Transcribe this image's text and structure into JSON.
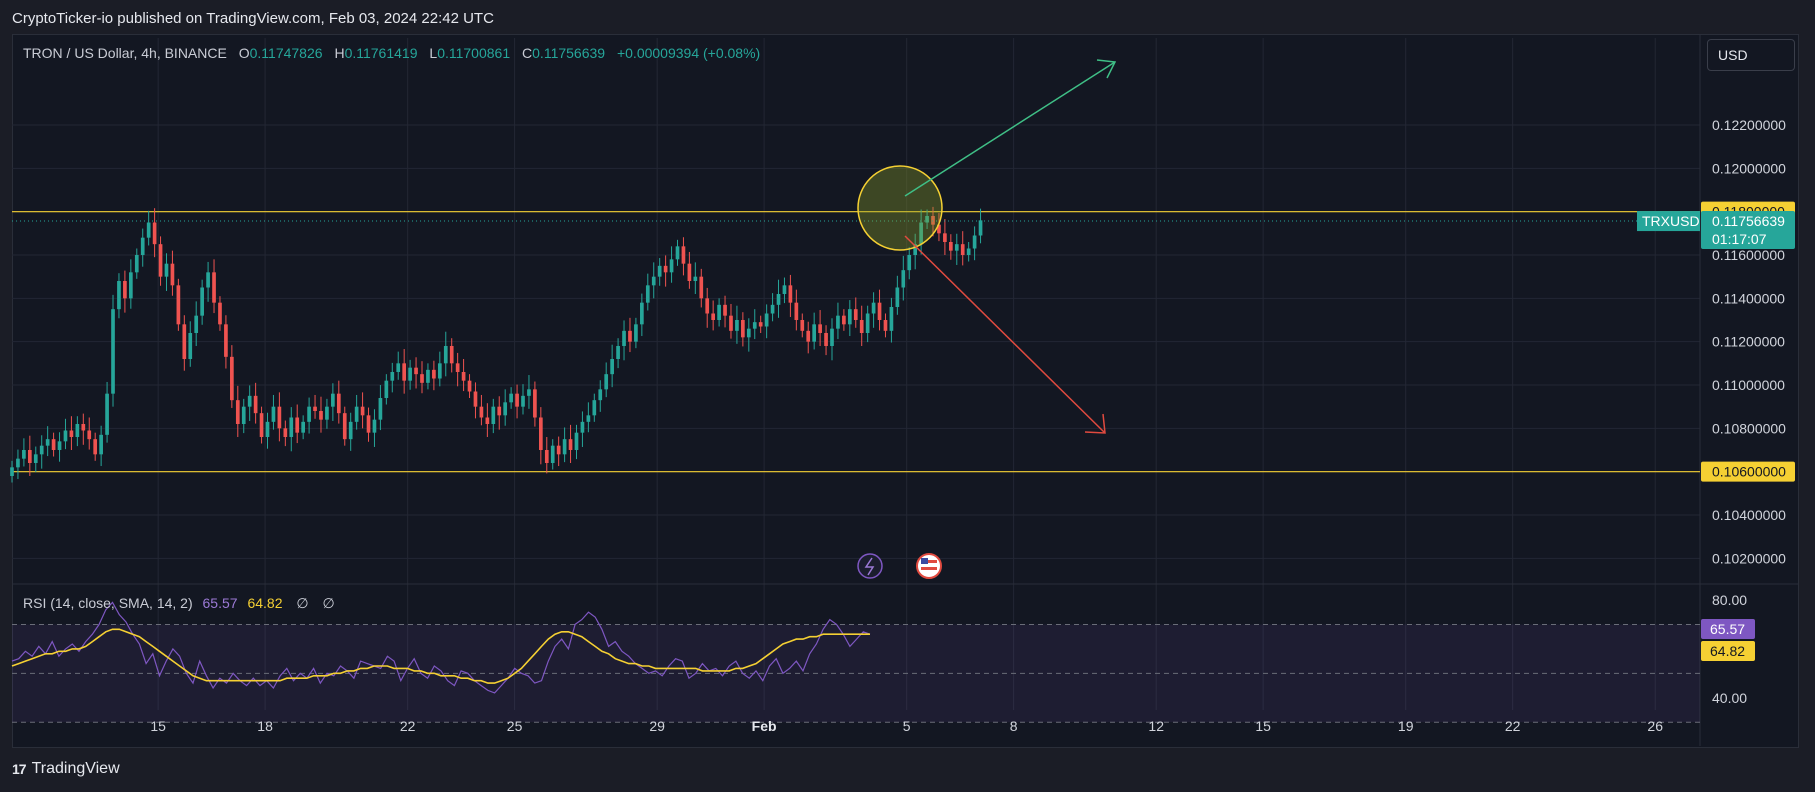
{
  "header": {
    "published_text": "CryptoTicker-io published on TradingView.com, Feb 03, 2024 22:42 UTC"
  },
  "legend": {
    "symbol": "TRON / US Dollar, 4h, BINANCE",
    "open_label": "O",
    "open": "0.11747826",
    "high_label": "H",
    "high": "0.11761419",
    "low_label": "L",
    "low": "0.11700861",
    "close_label": "C",
    "close": "0.11756639",
    "change": "+0.00009394 (+0.08%)"
  },
  "currency_button": "USD",
  "rsi_legend": {
    "label": "RSI (14, close, SMA, 14, 2)",
    "rsi": "65.57",
    "sma": "64.82",
    "na1": "∅",
    "na2": "∅"
  },
  "footer": {
    "brand": "TradingView",
    "logo": "17"
  },
  "colors": {
    "up": "#26a69a",
    "down": "#ef5350",
    "level": "#f5d033",
    "rsi": "#7e57c2",
    "rsi_sma": "#f5d033",
    "arrow_up": "#3fbf86",
    "arrow_down": "#e04a3f"
  },
  "chart_data": [
    {
      "type": "candlestick",
      "title": "TRON / US Dollar, 4h, BINANCE",
      "ylim": [
        0.101,
        0.125
      ],
      "y_ticks": [
        "0.12200000",
        "0.12000000",
        "0.11800000",
        "0.11600000",
        "0.11400000",
        "0.11200000",
        "0.11000000",
        "0.10800000",
        "0.10600000",
        "0.10400000",
        "0.10200000"
      ],
      "x_ticks": [
        {
          "label": "15",
          "x": 14
        },
        {
          "label": "18",
          "x": 17
        },
        {
          "label": "22",
          "x": 21
        },
        {
          "label": "25",
          "x": 24
        },
        {
          "label": "29",
          "x": 28
        },
        {
          "label": "Feb",
          "x": 31
        },
        {
          "label": "5",
          "x": 35
        },
        {
          "label": "8",
          "x": 38
        },
        {
          "label": "12",
          "x": 42
        },
        {
          "label": "15",
          "x": 45
        },
        {
          "label": "19",
          "x": 49
        },
        {
          "label": "22",
          "x": 52
        },
        {
          "label": "26",
          "x": 56
        }
      ],
      "x_unit": "days from Jan 1, 2024",
      "xlim": [
        9.9,
        57.2
      ],
      "horizontal_levels": [
        {
          "value": 0.118,
          "label": "0.11800000"
        },
        {
          "value": 0.106,
          "label": "0.10600000"
        }
      ],
      "last_price": {
        "symbol": "TRXUSD",
        "value": 0.11756639,
        "label": "0.11756639",
        "countdown": "01:17:07"
      },
      "data_start_x": 9.9,
      "candle_step_days": 0.1667,
      "close_series": [
        0.1062,
        0.1066,
        0.107,
        0.1064,
        0.1068,
        0.1072,
        0.1075,
        0.107,
        0.1074,
        0.1079,
        0.1076,
        0.1082,
        0.1079,
        0.1075,
        0.1068,
        0.1077,
        0.1096,
        0.1135,
        0.1148,
        0.114,
        0.1152,
        0.116,
        0.1168,
        0.1175,
        0.1165,
        0.115,
        0.1156,
        0.1146,
        0.1128,
        0.1112,
        0.1124,
        0.1132,
        0.1145,
        0.1152,
        0.1138,
        0.1128,
        0.1113,
        0.1093,
        0.1082,
        0.109,
        0.1095,
        0.1087,
        0.1076,
        0.1083,
        0.109,
        0.108,
        0.1076,
        0.1085,
        0.1078,
        0.1083,
        0.109,
        0.1088,
        0.1084,
        0.109,
        0.1096,
        0.1087,
        0.1075,
        0.1083,
        0.109,
        0.1086,
        0.1078,
        0.1084,
        0.1094,
        0.1102,
        0.1106,
        0.111,
        0.1102,
        0.1108,
        0.1105,
        0.1101,
        0.1107,
        0.1103,
        0.111,
        0.1118,
        0.111,
        0.1106,
        0.1102,
        0.1097,
        0.109,
        0.1085,
        0.1082,
        0.109,
        0.1086,
        0.1092,
        0.1096,
        0.109,
        0.1095,
        0.1098,
        0.1085,
        0.107,
        0.1064,
        0.1072,
        0.1068,
        0.1075,
        0.107,
        0.1078,
        0.1083,
        0.1086,
        0.1093,
        0.1098,
        0.1105,
        0.1112,
        0.1118,
        0.1125,
        0.112,
        0.1128,
        0.1138,
        0.1146,
        0.115,
        0.1155,
        0.1152,
        0.1158,
        0.1164,
        0.1156,
        0.1148,
        0.115,
        0.114,
        0.1133,
        0.113,
        0.1137,
        0.1132,
        0.1125,
        0.113,
        0.1122,
        0.1126,
        0.1129,
        0.1127,
        0.1133,
        0.1137,
        0.1142,
        0.1146,
        0.1138,
        0.113,
        0.1125,
        0.112,
        0.1128,
        0.1124,
        0.1118,
        0.1126,
        0.1132,
        0.1128,
        0.1135,
        0.113,
        0.1124,
        0.1133,
        0.1138,
        0.113,
        0.1125,
        0.1136,
        0.1145,
        0.1153,
        0.116,
        0.1165,
        0.1175,
        0.1178,
        0.1174,
        0.117,
        0.1166,
        0.1162,
        0.1165,
        0.116,
        0.1163,
        0.1169,
        0.1176
      ]
    },
    {
      "type": "line",
      "title": "RSI (14, close, SMA, 14, 2)",
      "ylim": [
        35,
        80
      ],
      "y_ticks": [
        "80.00",
        "40.00"
      ],
      "bands": [
        70,
        50,
        30
      ],
      "series": [
        {
          "name": "RSI",
          "last_label": "65.57",
          "values": [
            55,
            56,
            59,
            57,
            61,
            58,
            63,
            57,
            60,
            62,
            59,
            63,
            66,
            70,
            76,
            79,
            74,
            71,
            66,
            62,
            54,
            58,
            49,
            55,
            60,
            57,
            50,
            46,
            55,
            49,
            44,
            48,
            46,
            50,
            47,
            45,
            48,
            45,
            47,
            44,
            49,
            52,
            47,
            50,
            48,
            52,
            46,
            50,
            49,
            53,
            51,
            48,
            55,
            54,
            53,
            52,
            57,
            55,
            47,
            52,
            56,
            50,
            48,
            53,
            51,
            47,
            45,
            51,
            50,
            47,
            45,
            43,
            42,
            45,
            48,
            52,
            50,
            49,
            46,
            47,
            55,
            61,
            64,
            60,
            70,
            72,
            75,
            73,
            68,
            61,
            63,
            59,
            57,
            54,
            52,
            50,
            51,
            49,
            53,
            56,
            55,
            48,
            50,
            54,
            51,
            52,
            49,
            53,
            55,
            50,
            48,
            51,
            47,
            53,
            56,
            50,
            52,
            55,
            51,
            58,
            62,
            68,
            72,
            70,
            66,
            61,
            64,
            67,
            66
          ]
        },
        {
          "name": "RSI-based MA",
          "last_label": "64.82",
          "values": [
            53,
            54,
            55,
            56,
            57,
            58,
            58,
            59,
            59,
            60,
            60,
            61,
            63,
            65,
            67,
            68,
            68,
            67,
            66,
            65,
            63,
            61,
            59,
            57,
            55,
            53,
            51,
            49,
            48,
            47,
            47,
            47,
            47,
            47,
            47,
            47,
            47,
            47,
            47,
            47,
            47,
            48,
            48,
            48,
            48,
            49,
            49,
            49,
            50,
            50,
            51,
            51,
            52,
            52,
            53,
            53,
            53,
            52,
            52,
            52,
            51,
            51,
            50,
            50,
            49,
            49,
            49,
            48,
            48,
            47,
            47,
            46,
            46,
            47,
            48,
            50,
            52,
            55,
            58,
            61,
            64,
            66,
            67,
            67,
            66,
            65,
            63,
            61,
            59,
            58,
            56,
            55,
            54,
            54,
            53,
            53,
            52,
            52,
            52,
            52,
            52,
            52,
            52,
            51,
            51,
            51,
            51,
            51,
            52,
            52,
            53,
            54,
            56,
            58,
            60,
            62,
            63,
            64,
            64,
            65,
            65,
            66,
            66,
            66,
            66,
            66,
            66,
            66,
            66
          ]
        }
      ]
    }
  ]
}
